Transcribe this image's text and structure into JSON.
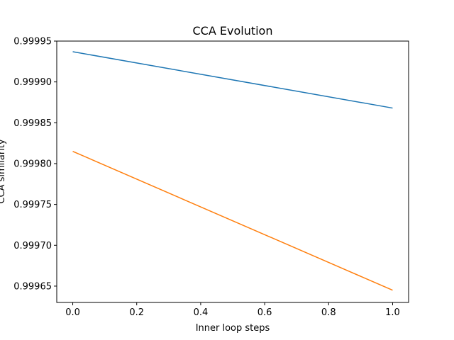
{
  "chart_data": {
    "type": "line",
    "title": "CCA Evolution",
    "xlabel": "Inner loop steps",
    "ylabel": "CCA similarity",
    "xlim": [
      -0.05,
      1.05
    ],
    "ylim": [
      0.99963,
      0.99995
    ],
    "x_ticks": [
      0.0,
      0.2,
      0.4,
      0.6,
      0.8,
      1.0
    ],
    "x_tick_labels": [
      "0.0",
      "0.2",
      "0.4",
      "0.6",
      "0.8",
      "1.0"
    ],
    "y_ticks": [
      0.99965,
      0.9997,
      0.99975,
      0.9998,
      0.99985,
      0.9999,
      0.99995
    ],
    "y_tick_labels": [
      "0.99965",
      "0.99970",
      "0.99975",
      "0.99980",
      "0.99985",
      "0.99990",
      "0.99995"
    ],
    "grid": false,
    "legend": "none",
    "series": [
      {
        "color": "#1f77b4",
        "x": [
          0.0,
          1.0
        ],
        "y": [
          0.999937,
          0.999868
        ]
      },
      {
        "color": "#ff7f0e",
        "x": [
          0.0,
          1.0
        ],
        "y": [
          0.999815,
          0.999645
        ]
      }
    ]
  }
}
